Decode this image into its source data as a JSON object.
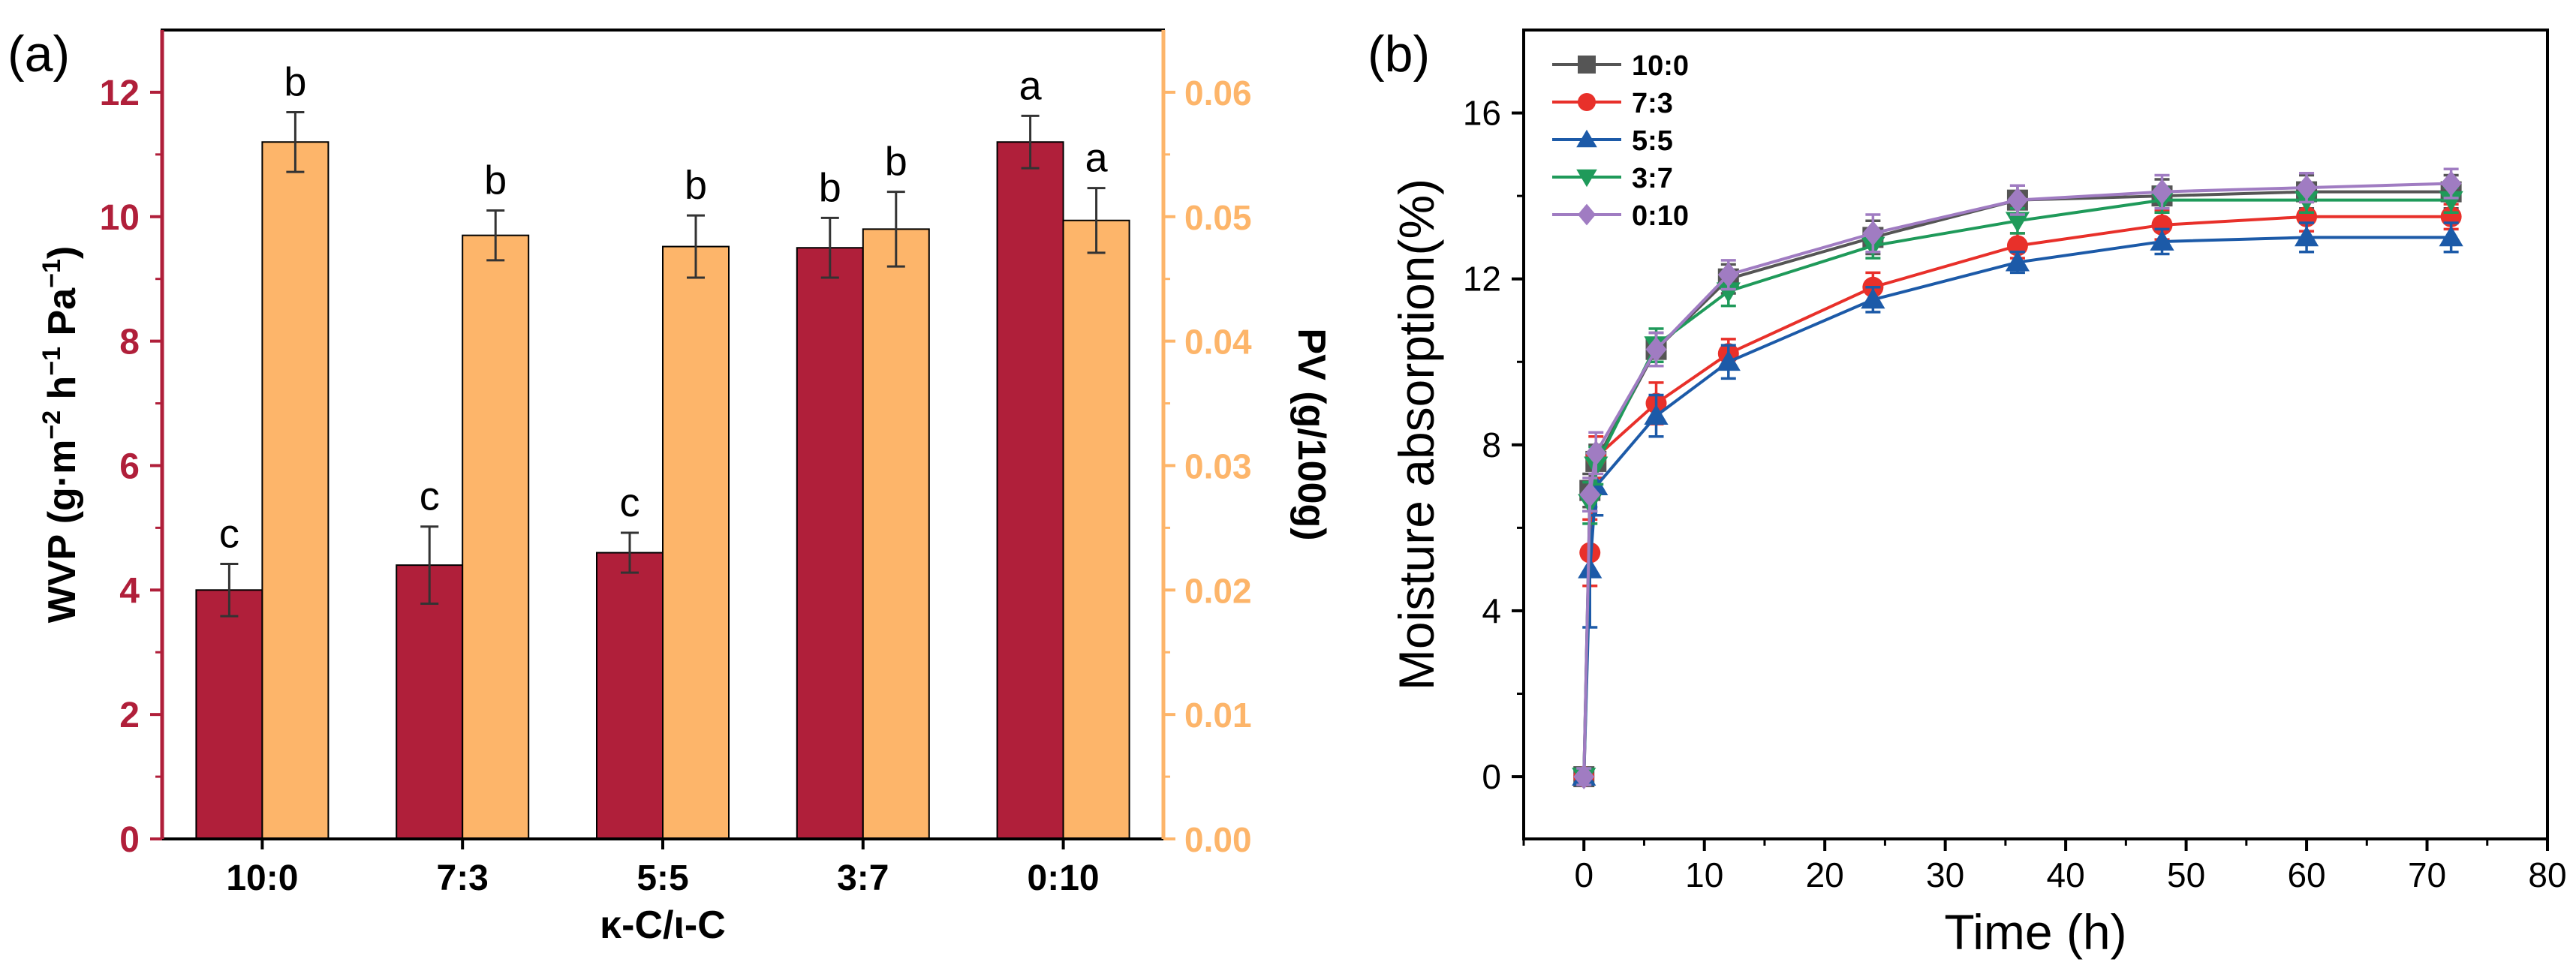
{
  "panels": {
    "a": {
      "label": "(a)"
    },
    "b": {
      "label": "(b)"
    }
  },
  "colors": {
    "wvp_bar": "#b01f3a",
    "pv_bar": "#fdb56a",
    "left_axis": "#b01f3a",
    "right_axis": "#fdb56a",
    "s_10_0": "#555555",
    "s_7_3": "#e8302a",
    "s_5_5": "#1c5aa8",
    "s_3_7": "#1f9a5a",
    "s_0_10": "#a07cc2"
  },
  "chart_data": [
    {
      "type": "bar",
      "panel": "a",
      "categories": [
        "10:0",
        "7:3",
        "5:5",
        "3:7",
        "0:10"
      ],
      "xlabel": "κ-C/ι-C",
      "ylabel": "WVP (g·m⁻² h⁻¹ Pa⁻¹)",
      "ylabel_parts": {
        "pre": "WVP (g·m",
        "sup1": "−2",
        "mid": " h",
        "sup2": "−1",
        "post": " Pa",
        "sup3": "−1",
        "end": ")"
      },
      "y2label": "PV (g/100g)",
      "ylim": [
        0,
        13
      ],
      "y2lim": [
        0,
        0.065
      ],
      "yticks": [
        "0",
        "2",
        "4",
        "6",
        "8",
        "10",
        "12"
      ],
      "y2ticks": [
        "0.00",
        "0.01",
        "0.02",
        "0.03",
        "0.04",
        "0.05",
        "0.06"
      ],
      "series": [
        {
          "name": "WVP",
          "axis": "left",
          "values": [
            4.0,
            4.4,
            4.6,
            9.5,
            11.2
          ],
          "errors": [
            0.42,
            0.62,
            0.32,
            0.48,
            0.42
          ],
          "letters": [
            "c",
            "c",
            "c",
            "b",
            "a"
          ]
        },
        {
          "name": "PV",
          "axis": "right",
          "values": [
            0.056,
            0.0485,
            0.0476,
            0.049,
            0.0497
          ],
          "errors": [
            0.0024,
            0.002,
            0.0025,
            0.003,
            0.0026
          ],
          "letters": [
            "b",
            "b",
            "b",
            "b",
            "a"
          ]
        }
      ]
    },
    {
      "type": "line",
      "panel": "b",
      "xlabel": "Time (h)",
      "ylabel": "Moisture absorption(%)",
      "xlim": [
        -5,
        80
      ],
      "ylim": [
        -1.5,
        18
      ],
      "xticks": [
        "0",
        "10",
        "20",
        "30",
        "40",
        "50",
        "60",
        "70",
        "80"
      ],
      "yticks": [
        "0",
        "4",
        "8",
        "12",
        "16"
      ],
      "x": [
        0,
        0.5,
        1,
        6,
        12,
        24,
        36,
        48,
        60,
        72
      ],
      "series": [
        {
          "name": "10:0",
          "marker": "square",
          "values": [
            0,
            6.9,
            7.6,
            10.3,
            12.0,
            13.0,
            13.9,
            14.0,
            14.1,
            14.1
          ],
          "errors": [
            0.2,
            0.4,
            0.4,
            0.4,
            0.35,
            0.4,
            0.35,
            0.4,
            0.4,
            0.4
          ]
        },
        {
          "name": "7:3",
          "marker": "circle",
          "values": [
            0,
            5.4,
            7.7,
            9.0,
            10.2,
            11.8,
            12.8,
            13.3,
            13.5,
            13.5
          ],
          "errors": [
            0.2,
            0.8,
            0.5,
            0.5,
            0.35,
            0.35,
            0.3,
            0.35,
            0.35,
            0.3
          ]
        },
        {
          "name": "5:5",
          "marker": "triangle-up",
          "values": [
            0,
            5.0,
            7.0,
            8.7,
            10.0,
            11.5,
            12.4,
            12.9,
            13.0,
            13.0
          ],
          "errors": [
            0.2,
            1.4,
            0.7,
            0.5,
            0.4,
            0.3,
            0.25,
            0.3,
            0.35,
            0.35
          ]
        },
        {
          "name": "3:7",
          "marker": "triangle-down",
          "values": [
            0,
            6.6,
            7.5,
            10.4,
            11.7,
            12.8,
            13.4,
            13.9,
            13.9,
            13.9
          ],
          "errors": [
            0.2,
            0.5,
            0.45,
            0.4,
            0.35,
            0.3,
            0.3,
            0.3,
            0.3,
            0.3
          ]
        },
        {
          "name": "0:10",
          "marker": "diamond",
          "values": [
            0,
            6.8,
            7.8,
            10.3,
            12.1,
            13.1,
            13.9,
            14.1,
            14.2,
            14.3
          ],
          "errors": [
            0.2,
            0.4,
            0.5,
            0.4,
            0.35,
            0.45,
            0.35,
            0.4,
            0.35,
            0.35
          ]
        }
      ]
    }
  ]
}
